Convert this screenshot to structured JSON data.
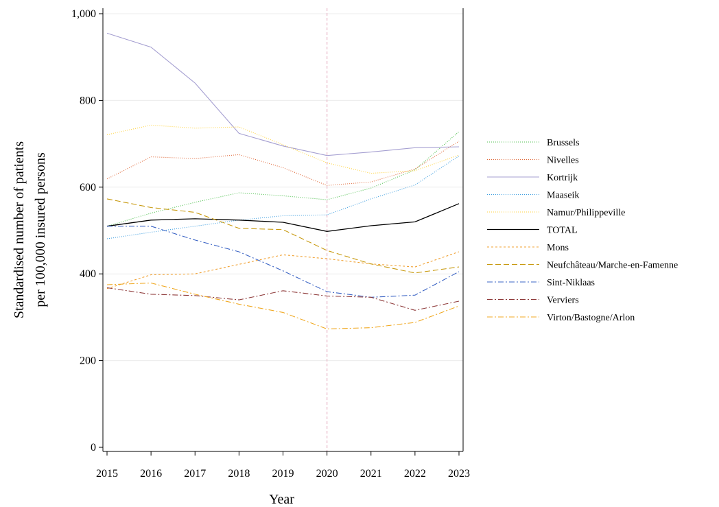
{
  "chart_data": {
    "type": "line",
    "title": "",
    "xlabel": "Year",
    "ylabel_lines": [
      "Standardised number of patients",
      "per 100,000 insured persons"
    ],
    "x": [
      2015,
      2016,
      2017,
      2018,
      2019,
      2020,
      2021,
      2022,
      2023
    ],
    "x_tick_labels": [
      "2015",
      "2016",
      "2017",
      "2018",
      "2019",
      "2020",
      "2021",
      "2022",
      "2023"
    ],
    "ylim": [
      0,
      1000
    ],
    "y_ticks": [
      0,
      200,
      400,
      600,
      800,
      1000
    ],
    "y_tick_labels": [
      "0",
      "200",
      "400",
      "600",
      "800",
      "1,000"
    ],
    "grid": true,
    "reference_line_x": 2020,
    "legend_position": "right",
    "series": [
      {
        "name": "Brussels",
        "color": "#4cbf4c",
        "dash": "1 2",
        "values": [
          510,
          540,
          565,
          587,
          580,
          571,
          598,
          640,
          728
        ]
      },
      {
        "name": "Nivelles",
        "color": "#e06a3b",
        "dash": "1 2",
        "values": [
          619,
          670,
          666,
          675,
          645,
          604,
          612,
          642,
          706
        ]
      },
      {
        "name": "Kortrijk",
        "color": "#a59fd1",
        "dash": "",
        "values": [
          955,
          923,
          840,
          724,
          695,
          673,
          681,
          691,
          693
        ]
      },
      {
        "name": "Maaseik",
        "color": "#3f9fe0",
        "dash": "1 2",
        "values": [
          481,
          496,
          510,
          524,
          534,
          536,
          573,
          605,
          672
        ]
      },
      {
        "name": "Namur/Philippeville",
        "color": "#ffd23a",
        "dash": "1 2",
        "values": [
          721,
          743,
          736,
          739,
          698,
          656,
          632,
          638,
          674
        ]
      },
      {
        "name": "TOTAL",
        "color": "#000000",
        "dash": "",
        "values": [
          510,
          524,
          527,
          524,
          519,
          498,
          511,
          520,
          562
        ]
      },
      {
        "name": "Mons",
        "color": "#f0a030",
        "dash": "3 3",
        "values": [
          366,
          398,
          400,
          422,
          444,
          435,
          423,
          416,
          451
        ]
      },
      {
        "name": "Neufchâteau/Marche-en-Famenne",
        "color": "#c89a10",
        "dash": "8 4",
        "values": [
          573,
          553,
          542,
          505,
          502,
          454,
          423,
          402,
          416
        ]
      },
      {
        "name": "Sint-Niklaas",
        "color": "#3a63c4",
        "dash": "8 3 2 3",
        "values": [
          510,
          510,
          478,
          451,
          407,
          359,
          346,
          351,
          405
        ]
      },
      {
        "name": "Verviers",
        "color": "#8e3a3a",
        "dash": "8 3 2 3",
        "values": [
          368,
          353,
          350,
          340,
          361,
          349,
          346,
          316,
          337
        ]
      },
      {
        "name": "Virton/Bastogne/Arlon",
        "color": "#f0a820",
        "dash": "8 3 2 3",
        "values": [
          375,
          379,
          353,
          330,
          311,
          273,
          276,
          288,
          326
        ]
      }
    ]
  }
}
